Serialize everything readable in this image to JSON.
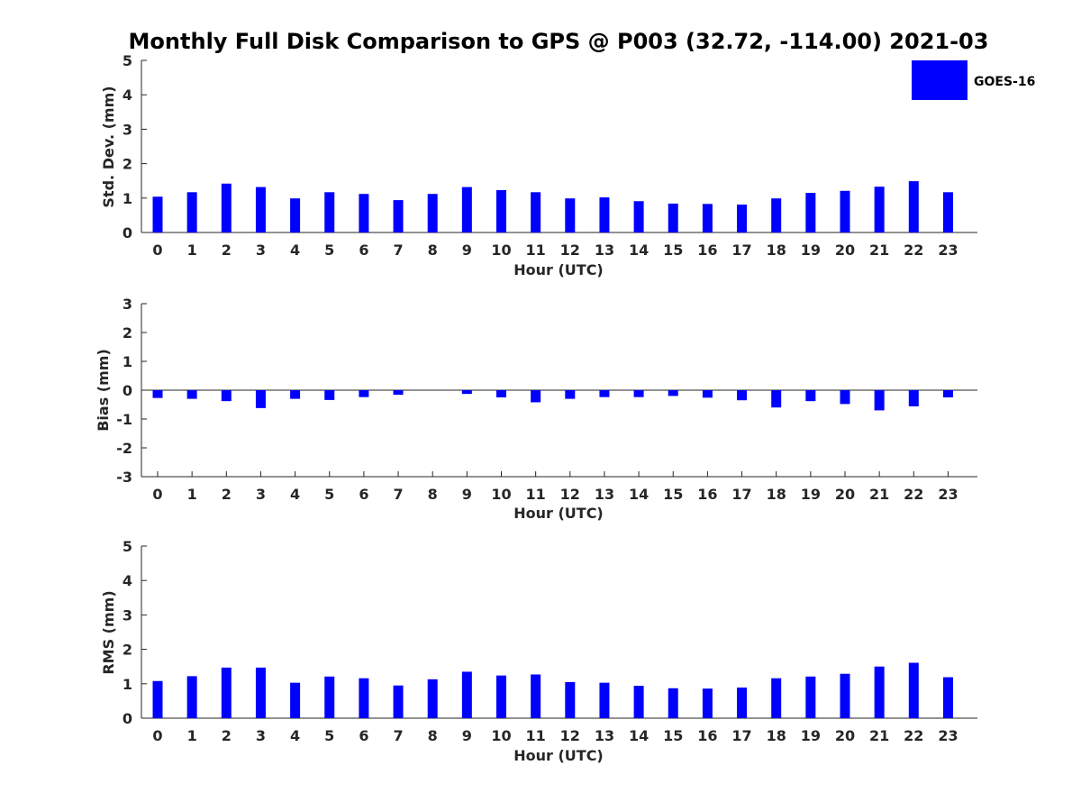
{
  "title": "Monthly Full Disk Comparison to GPS @ P003 (32.72, -114.00) 2021-03",
  "legend": {
    "label": "GOES-16",
    "color": "#0000ff",
    "placement": "top-right"
  },
  "chart_data": [
    {
      "type": "bar",
      "xlabel": "Hour (UTC)",
      "ylabel": "Std. Dev. (mm)",
      "ylim": [
        0,
        5
      ],
      "yticks": [
        0,
        1,
        2,
        3,
        4,
        5
      ],
      "categories": [
        "0",
        "1",
        "2",
        "3",
        "4",
        "5",
        "6",
        "7",
        "8",
        "9",
        "10",
        "11",
        "12",
        "13",
        "14",
        "15",
        "16",
        "17",
        "18",
        "19",
        "20",
        "21",
        "22",
        "23"
      ],
      "series": [
        {
          "name": "GOES-16",
          "values": [
            1.04,
            1.17,
            1.42,
            1.32,
            0.99,
            1.17,
            1.12,
            0.94,
            1.12,
            1.32,
            1.23,
            1.17,
            0.99,
            1.02,
            0.91,
            0.84,
            0.83,
            0.81,
            0.99,
            1.15,
            1.21,
            1.33,
            1.49,
            1.17
          ]
        }
      ]
    },
    {
      "type": "bar",
      "xlabel": "Hour (UTC)",
      "ylabel": "Bias (mm)",
      "ylim": [
        -3,
        3
      ],
      "yticks": [
        -3,
        -2,
        -1,
        0,
        1,
        2,
        3
      ],
      "categories": [
        "0",
        "1",
        "2",
        "3",
        "4",
        "5",
        "6",
        "7",
        "8",
        "9",
        "10",
        "11",
        "12",
        "13",
        "14",
        "15",
        "16",
        "17",
        "18",
        "19",
        "20",
        "21",
        "22",
        "23"
      ],
      "series": [
        {
          "name": "GOES-16",
          "values": [
            -0.27,
            -0.3,
            -0.38,
            -0.62,
            -0.3,
            -0.34,
            -0.24,
            -0.16,
            0.0,
            -0.13,
            -0.25,
            -0.42,
            -0.3,
            -0.24,
            -0.24,
            -0.2,
            -0.26,
            -0.35,
            -0.6,
            -0.38,
            -0.48,
            -0.7,
            -0.56,
            -0.25
          ]
        }
      ]
    },
    {
      "type": "bar",
      "xlabel": "Hour (UTC)",
      "ylabel": "RMS (mm)",
      "ylim": [
        0,
        5
      ],
      "yticks": [
        0,
        1,
        2,
        3,
        4,
        5
      ],
      "categories": [
        "0",
        "1",
        "2",
        "3",
        "4",
        "5",
        "6",
        "7",
        "8",
        "9",
        "10",
        "11",
        "12",
        "13",
        "14",
        "15",
        "16",
        "17",
        "18",
        "19",
        "20",
        "21",
        "22",
        "23"
      ],
      "series": [
        {
          "name": "GOES-16",
          "values": [
            1.08,
            1.22,
            1.47,
            1.47,
            1.03,
            1.21,
            1.16,
            0.95,
            1.13,
            1.35,
            1.24,
            1.27,
            1.05,
            1.03,
            0.94,
            0.87,
            0.86,
            0.89,
            1.16,
            1.21,
            1.29,
            1.5,
            1.61,
            1.19
          ]
        }
      ]
    }
  ]
}
